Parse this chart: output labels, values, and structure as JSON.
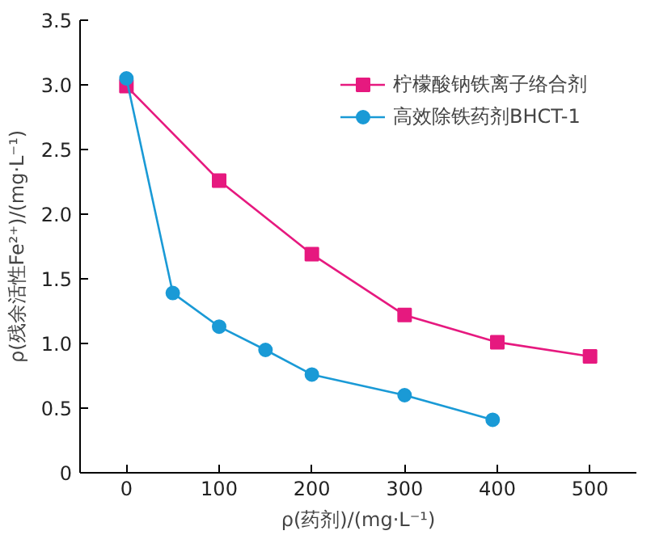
{
  "chart_data": {
    "type": "line",
    "xlabel": "ρ(药剂)/(mg·L⁻¹)",
    "ylabel": "ρ(残余活性Fe²⁺)/(mg·L⁻¹)",
    "xlim": [
      -50,
      550
    ],
    "ylim": [
      0,
      3.5
    ],
    "xticks": [
      0,
      100,
      200,
      300,
      400,
      500
    ],
    "yticks": [
      0,
      {
        "value": 0.5,
        "label": "0.5"
      },
      {
        "value": 1,
        "label": "1.0"
      },
      {
        "value": 1.5,
        "label": "1.5"
      },
      {
        "value": 2,
        "label": "2.0"
      },
      {
        "value": 2.5,
        "label": "2.5"
      },
      {
        "value": 3,
        "label": "3.0"
      },
      {
        "value": 3.5,
        "label": "3.5"
      }
    ],
    "grid": false,
    "legend": "top right",
    "series": [
      {
        "name": "柠檬酸钠铁离子络合剂",
        "color": "#e6197f",
        "marker": "square",
        "x": [
          0,
          100,
          200,
          300,
          400,
          500
        ],
        "values": [
          2.99,
          2.26,
          1.69,
          1.22,
          1.01,
          0.9
        ]
      },
      {
        "name": "高效除铁药剂BHCT-1",
        "color": "#1a9ad6",
        "marker": "circle",
        "x": [
          0,
          50,
          100,
          150,
          200,
          300,
          395
        ],
        "values": [
          3.05,
          1.39,
          1.13,
          0.95,
          0.76,
          0.6,
          0.41
        ]
      }
    ]
  }
}
